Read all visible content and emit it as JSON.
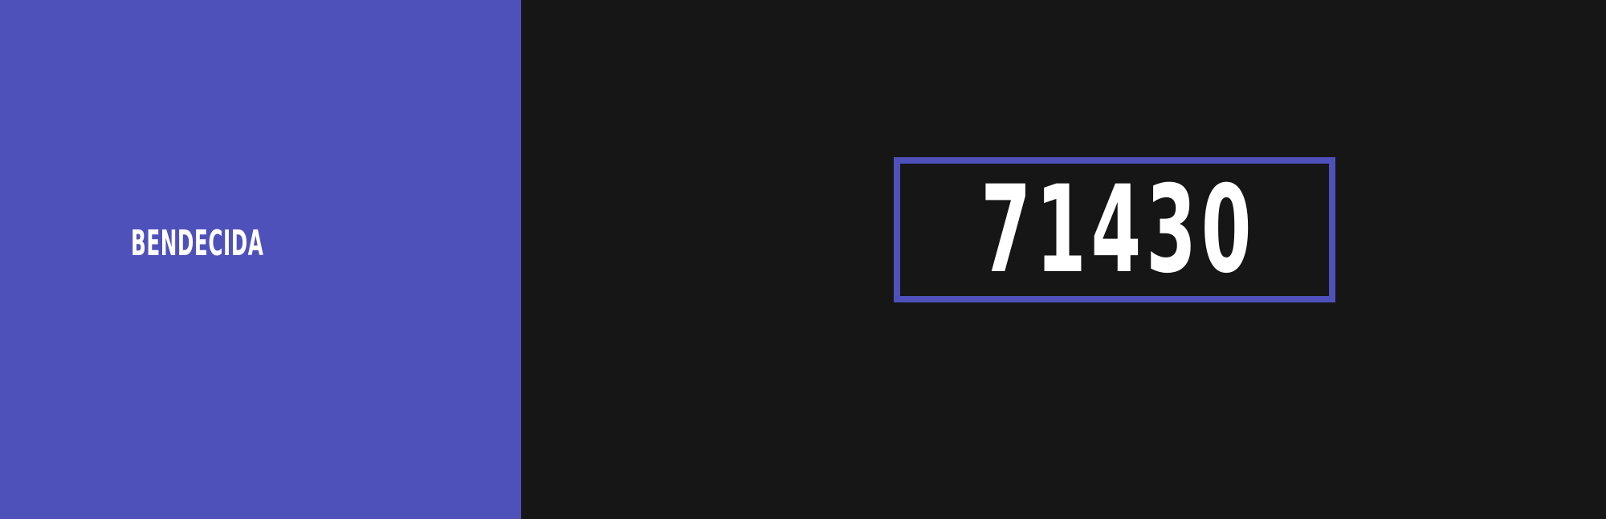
{
  "banner": {
    "left_panel": {
      "label": "BENDECIDA",
      "background_color": "#4f51bb",
      "text_color": "#ffffff"
    },
    "right_panel": {
      "number": "71430",
      "background_color": "#161616",
      "border_color": "#4f51bb",
      "text_color": "#ffffff"
    }
  }
}
